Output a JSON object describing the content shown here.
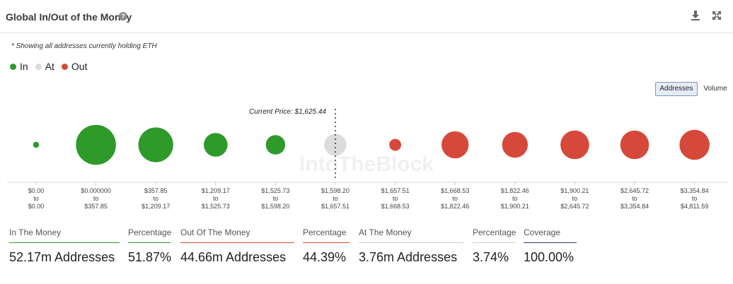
{
  "header": {
    "title": "Global In/Out of the Money",
    "help_glyph": "?",
    "download_icon": "download-icon",
    "expand_icon": "expand-icon"
  },
  "note": "* Showing all addresses currently holding ETH",
  "legend": [
    {
      "label": "In",
      "color": "#2e9a2a"
    },
    {
      "label": "At",
      "color": "#dcdcdc"
    },
    {
      "label": "Out",
      "color": "#d6493a"
    }
  ],
  "toggles": {
    "addresses": "Addresses",
    "volume": "Volume",
    "active": "addresses"
  },
  "watermark": "IntoTheBlock",
  "chart_data": {
    "type": "bubble",
    "title": "Global In/Out of the Money",
    "current_price_label": "Current Price: $1,625.44",
    "current_price": 1625.44,
    "size_metric": "Addresses",
    "series": [
      {
        "name": "In",
        "color": "#2e9a2a"
      },
      {
        "name": "At",
        "color": "#dcdcdc"
      },
      {
        "name": "Out",
        "color": "#d6493a"
      }
    ],
    "bins": [
      {
        "from": "$0.00",
        "to": "$0.00",
        "status": "In",
        "relative_size": 0.3
      },
      {
        "from": "$0.000000",
        "to": "$357.85",
        "status": "In",
        "relative_size": 2.02
      },
      {
        "from": "$357.85",
        "to": "$1,209.17",
        "status": "In",
        "relative_size": 1.76
      },
      {
        "from": "$1,209.17",
        "to": "$1,525.73",
        "status": "In",
        "relative_size": 1.2
      },
      {
        "from": "$1,525.73",
        "to": "$1,598.20",
        "status": "In",
        "relative_size": 0.98
      },
      {
        "from": "$1,598.20",
        "to": "$1,657.51",
        "status": "At",
        "relative_size": 1.12
      },
      {
        "from": "$1,657.51",
        "to": "$1,668.53",
        "status": "Out",
        "relative_size": 0.6
      },
      {
        "from": "$1,668.53",
        "to": "$1,822.46",
        "status": "Out",
        "relative_size": 1.37
      },
      {
        "from": "$1,822.46",
        "to": "$1,900.21",
        "status": "Out",
        "relative_size": 1.3
      },
      {
        "from": "$1,900.21",
        "to": "$2,645.72",
        "status": "Out",
        "relative_size": 1.45
      },
      {
        "from": "$2,645.72",
        "to": "$3,354.84",
        "status": "Out",
        "relative_size": 1.45
      },
      {
        "from": "$3,354.84",
        "to": "$4,811.59",
        "status": "Out",
        "relative_size": 1.52
      }
    ],
    "range_connector": "to"
  },
  "stats": [
    {
      "label": "In The Money",
      "value": "52.17m Addresses",
      "underline": "#2e9a2a"
    },
    {
      "label": "Percentage",
      "value": "51.87%",
      "underline": "#2e9a2a"
    },
    {
      "label": "Out Of The Money",
      "value": "44.66m Addresses",
      "underline": "#d6493a"
    },
    {
      "label": "Percentage",
      "value": "44.39%",
      "underline": "#d6493a"
    },
    {
      "label": "At The Money",
      "value": "3.76m Addresses",
      "underline": "#cfcfcf"
    },
    {
      "label": "Percentage",
      "value": "3.74%",
      "underline": "#cfcfcf"
    },
    {
      "label": "Coverage",
      "value": "100.00%",
      "underline": "#2f3f7a"
    }
  ]
}
